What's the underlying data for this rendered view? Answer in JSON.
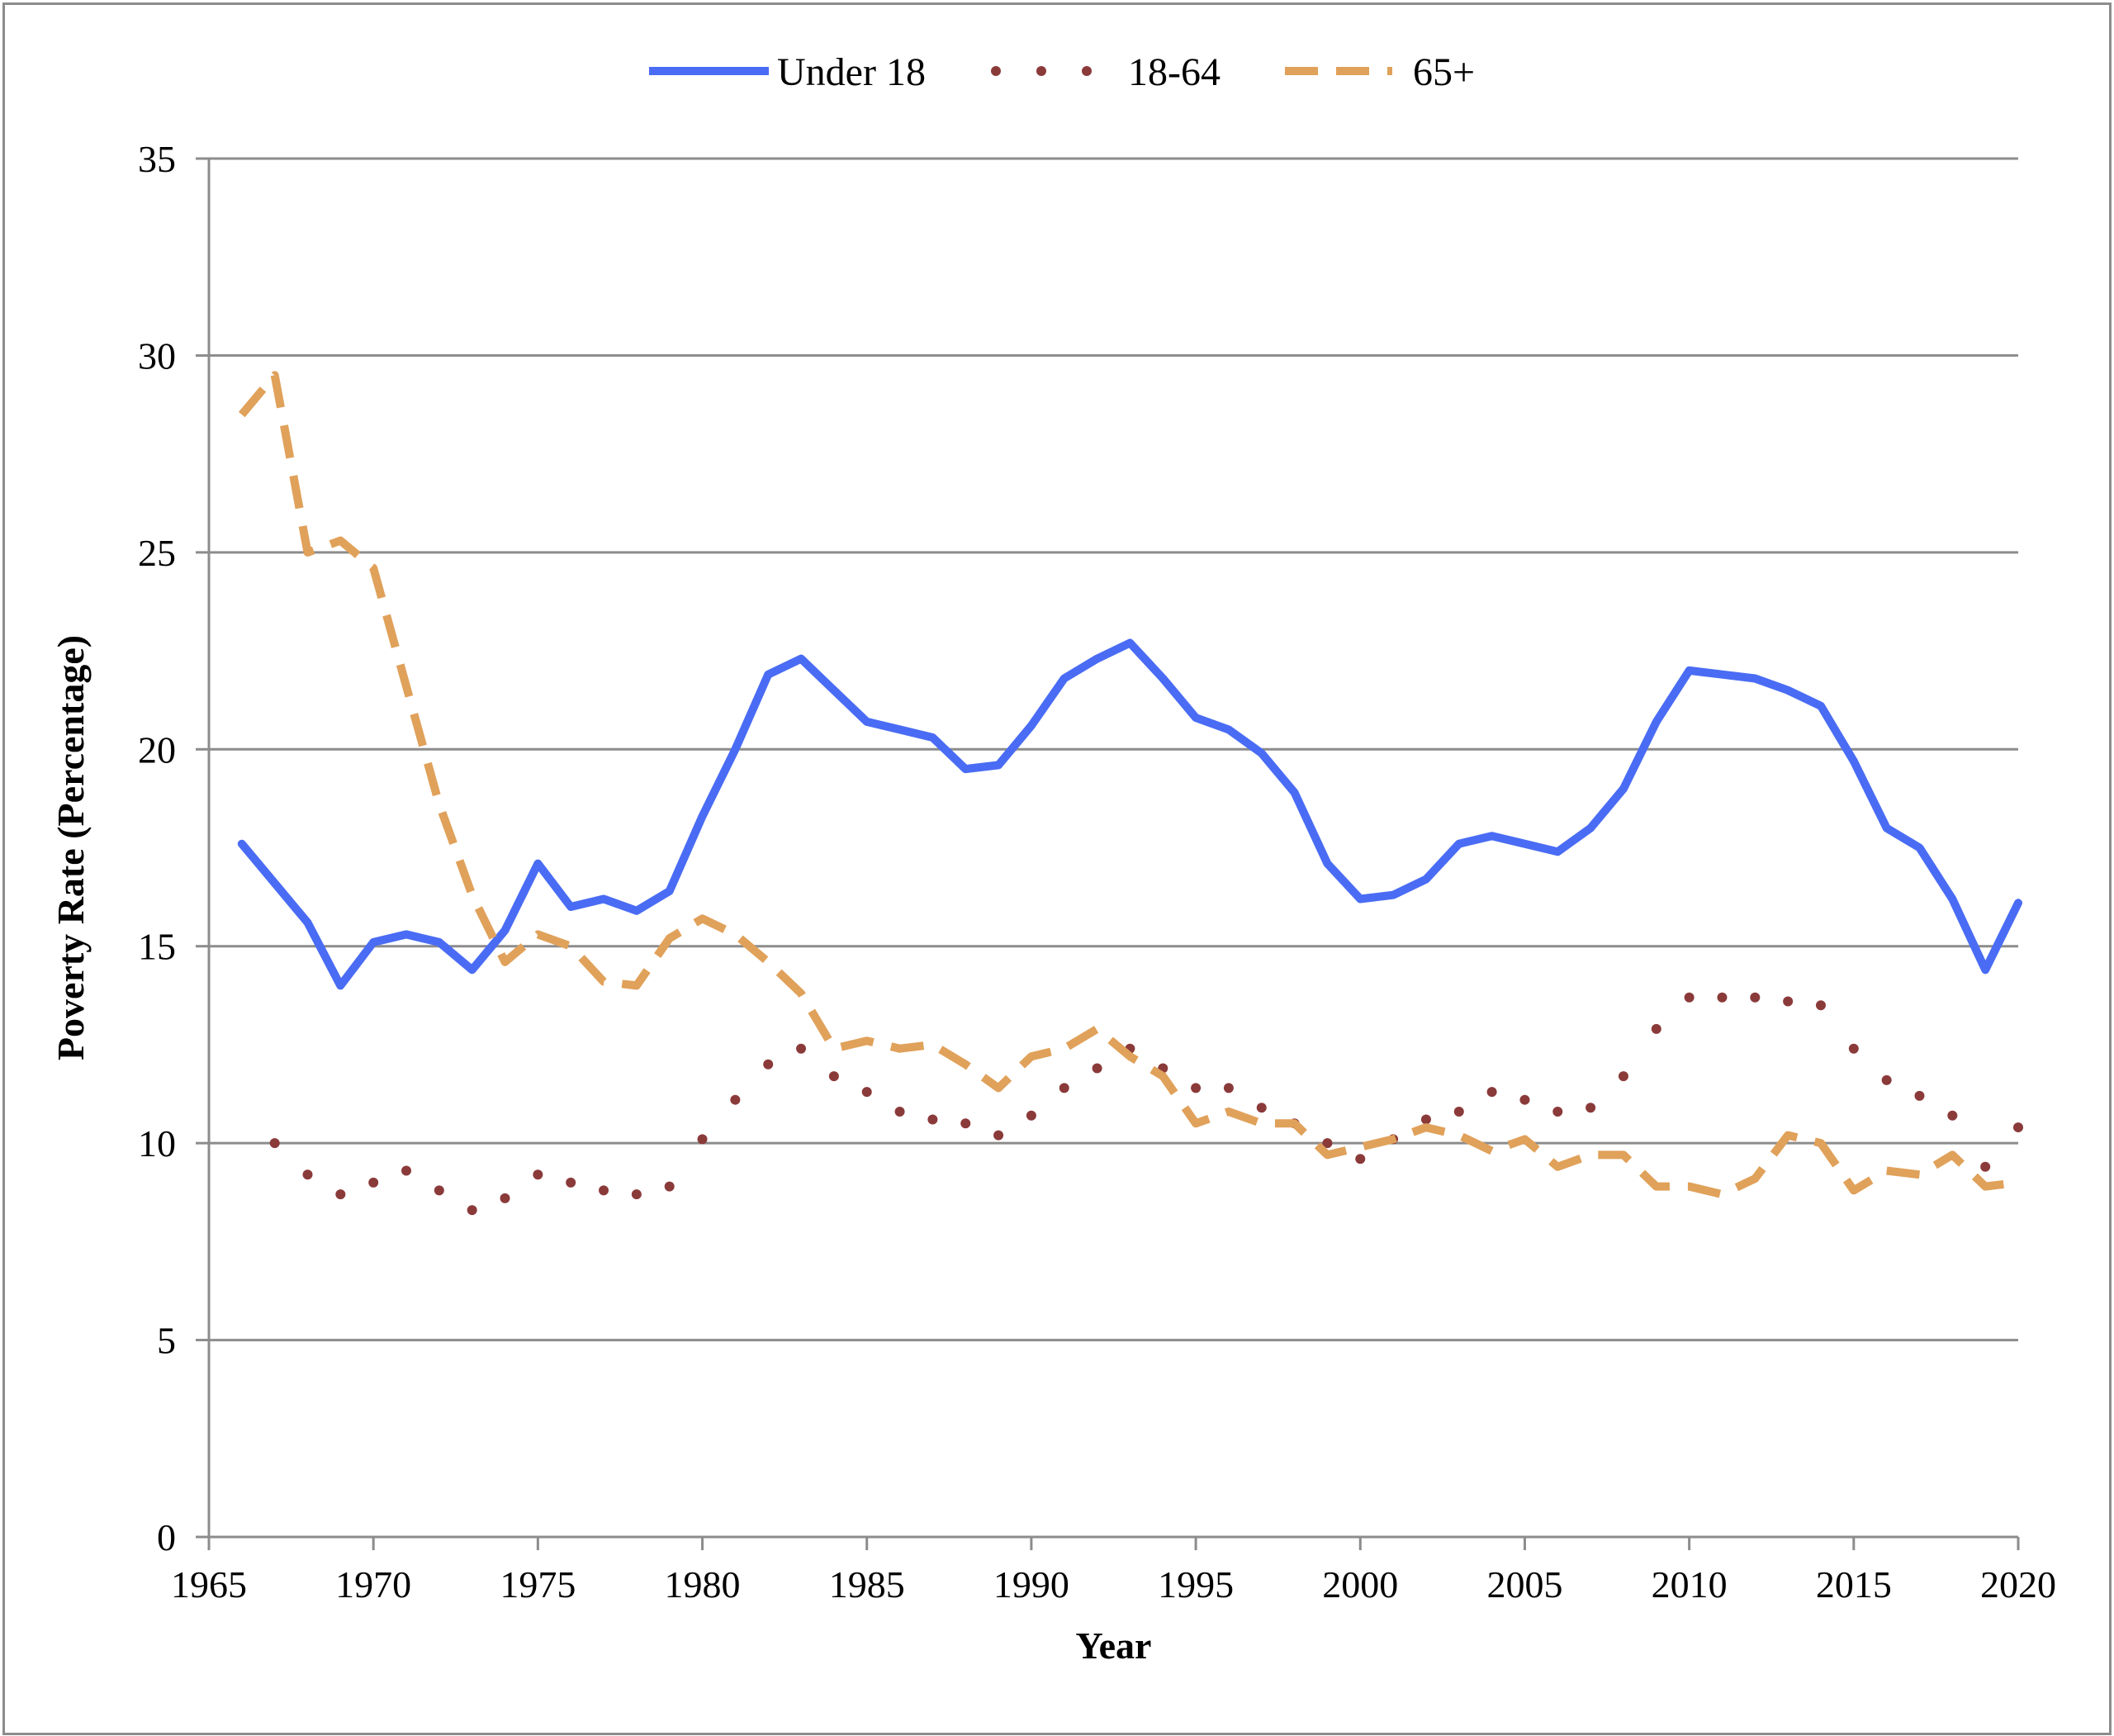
{
  "chart_data": {
    "type": "line",
    "xlabel": "Year",
    "ylabel": "Poverty Rate (Percentage)",
    "xlim": [
      1965,
      2020
    ],
    "ylim": [
      0,
      35
    ],
    "x_ticks": [
      "1965",
      "1970",
      "1975",
      "1980",
      "1985",
      "1990",
      "1995",
      "2000",
      "2005",
      "2010",
      "2015",
      "2020"
    ],
    "y_ticks": [
      "0",
      "5",
      "10",
      "15",
      "20",
      "25",
      "30",
      "35"
    ],
    "grid": true,
    "legend_position": "top",
    "x": [
      1966,
      1967,
      1968,
      1969,
      1970,
      1971,
      1972,
      1973,
      1974,
      1975,
      1976,
      1977,
      1978,
      1979,
      1980,
      1981,
      1982,
      1983,
      1984,
      1985,
      1986,
      1987,
      1988,
      1989,
      1990,
      1991,
      1992,
      1993,
      1994,
      1995,
      1996,
      1997,
      1998,
      1999,
      2000,
      2001,
      2002,
      2003,
      2004,
      2005,
      2006,
      2007,
      2008,
      2009,
      2010,
      2011,
      2012,
      2013,
      2014,
      2015,
      2016,
      2017,
      2018,
      2019,
      2020
    ],
    "series": [
      {
        "name": "Under 18",
        "style": "solid",
        "color": "#4a6cf4",
        "values": [
          17.6,
          16.6,
          15.6,
          14.0,
          15.1,
          15.3,
          15.1,
          14.4,
          15.4,
          17.1,
          16.0,
          16.2,
          15.9,
          16.4,
          18.3,
          20.0,
          21.9,
          22.3,
          21.5,
          20.7,
          20.5,
          20.3,
          19.5,
          19.6,
          20.6,
          21.8,
          22.3,
          22.7,
          21.8,
          20.8,
          20.5,
          19.9,
          18.9,
          17.1,
          16.2,
          16.3,
          16.7,
          17.6,
          17.8,
          17.6,
          17.4,
          18.0,
          19.0,
          20.7,
          22.0,
          21.9,
          21.8,
          21.5,
          21.1,
          19.7,
          18.0,
          17.5,
          16.2,
          14.4,
          16.1
        ]
      },
      {
        "name": "18-64",
        "style": "dotted",
        "color": "#8b3a3a",
        "values": [
          null,
          10.0,
          9.2,
          8.7,
          9.0,
          9.3,
          8.8,
          8.3,
          8.6,
          9.2,
          9.0,
          8.8,
          8.7,
          8.9,
          10.1,
          11.1,
          12.0,
          12.4,
          11.7,
          11.3,
          10.8,
          10.6,
          10.5,
          10.2,
          10.7,
          11.4,
          11.9,
          12.4,
          11.9,
          11.4,
          11.4,
          10.9,
          10.5,
          10.0,
          9.6,
          10.1,
          10.6,
          10.8,
          11.3,
          11.1,
          10.8,
          10.9,
          11.7,
          12.9,
          13.7,
          13.7,
          13.7,
          13.6,
          13.5,
          12.4,
          11.6,
          11.2,
          10.7,
          9.4,
          10.4
        ]
      },
      {
        "name": "65+",
        "style": "dashed",
        "color": "#e0a15a",
        "values": [
          28.5,
          29.5,
          25.0,
          25.3,
          24.6,
          21.6,
          18.6,
          16.3,
          14.6,
          15.3,
          15.0,
          14.1,
          14.0,
          15.2,
          15.7,
          15.3,
          14.6,
          13.8,
          12.4,
          12.6,
          12.4,
          12.5,
          12.0,
          11.4,
          12.2,
          12.4,
          12.9,
          12.2,
          11.7,
          10.5,
          10.8,
          10.5,
          10.5,
          9.7,
          9.9,
          10.1,
          10.4,
          10.2,
          9.8,
          10.1,
          9.4,
          9.7,
          9.7,
          8.9,
          8.9,
          8.7,
          9.1,
          10.2,
          10.0,
          8.8,
          9.3,
          9.2,
          9.7,
          8.9,
          9.0
        ]
      }
    ]
  }
}
